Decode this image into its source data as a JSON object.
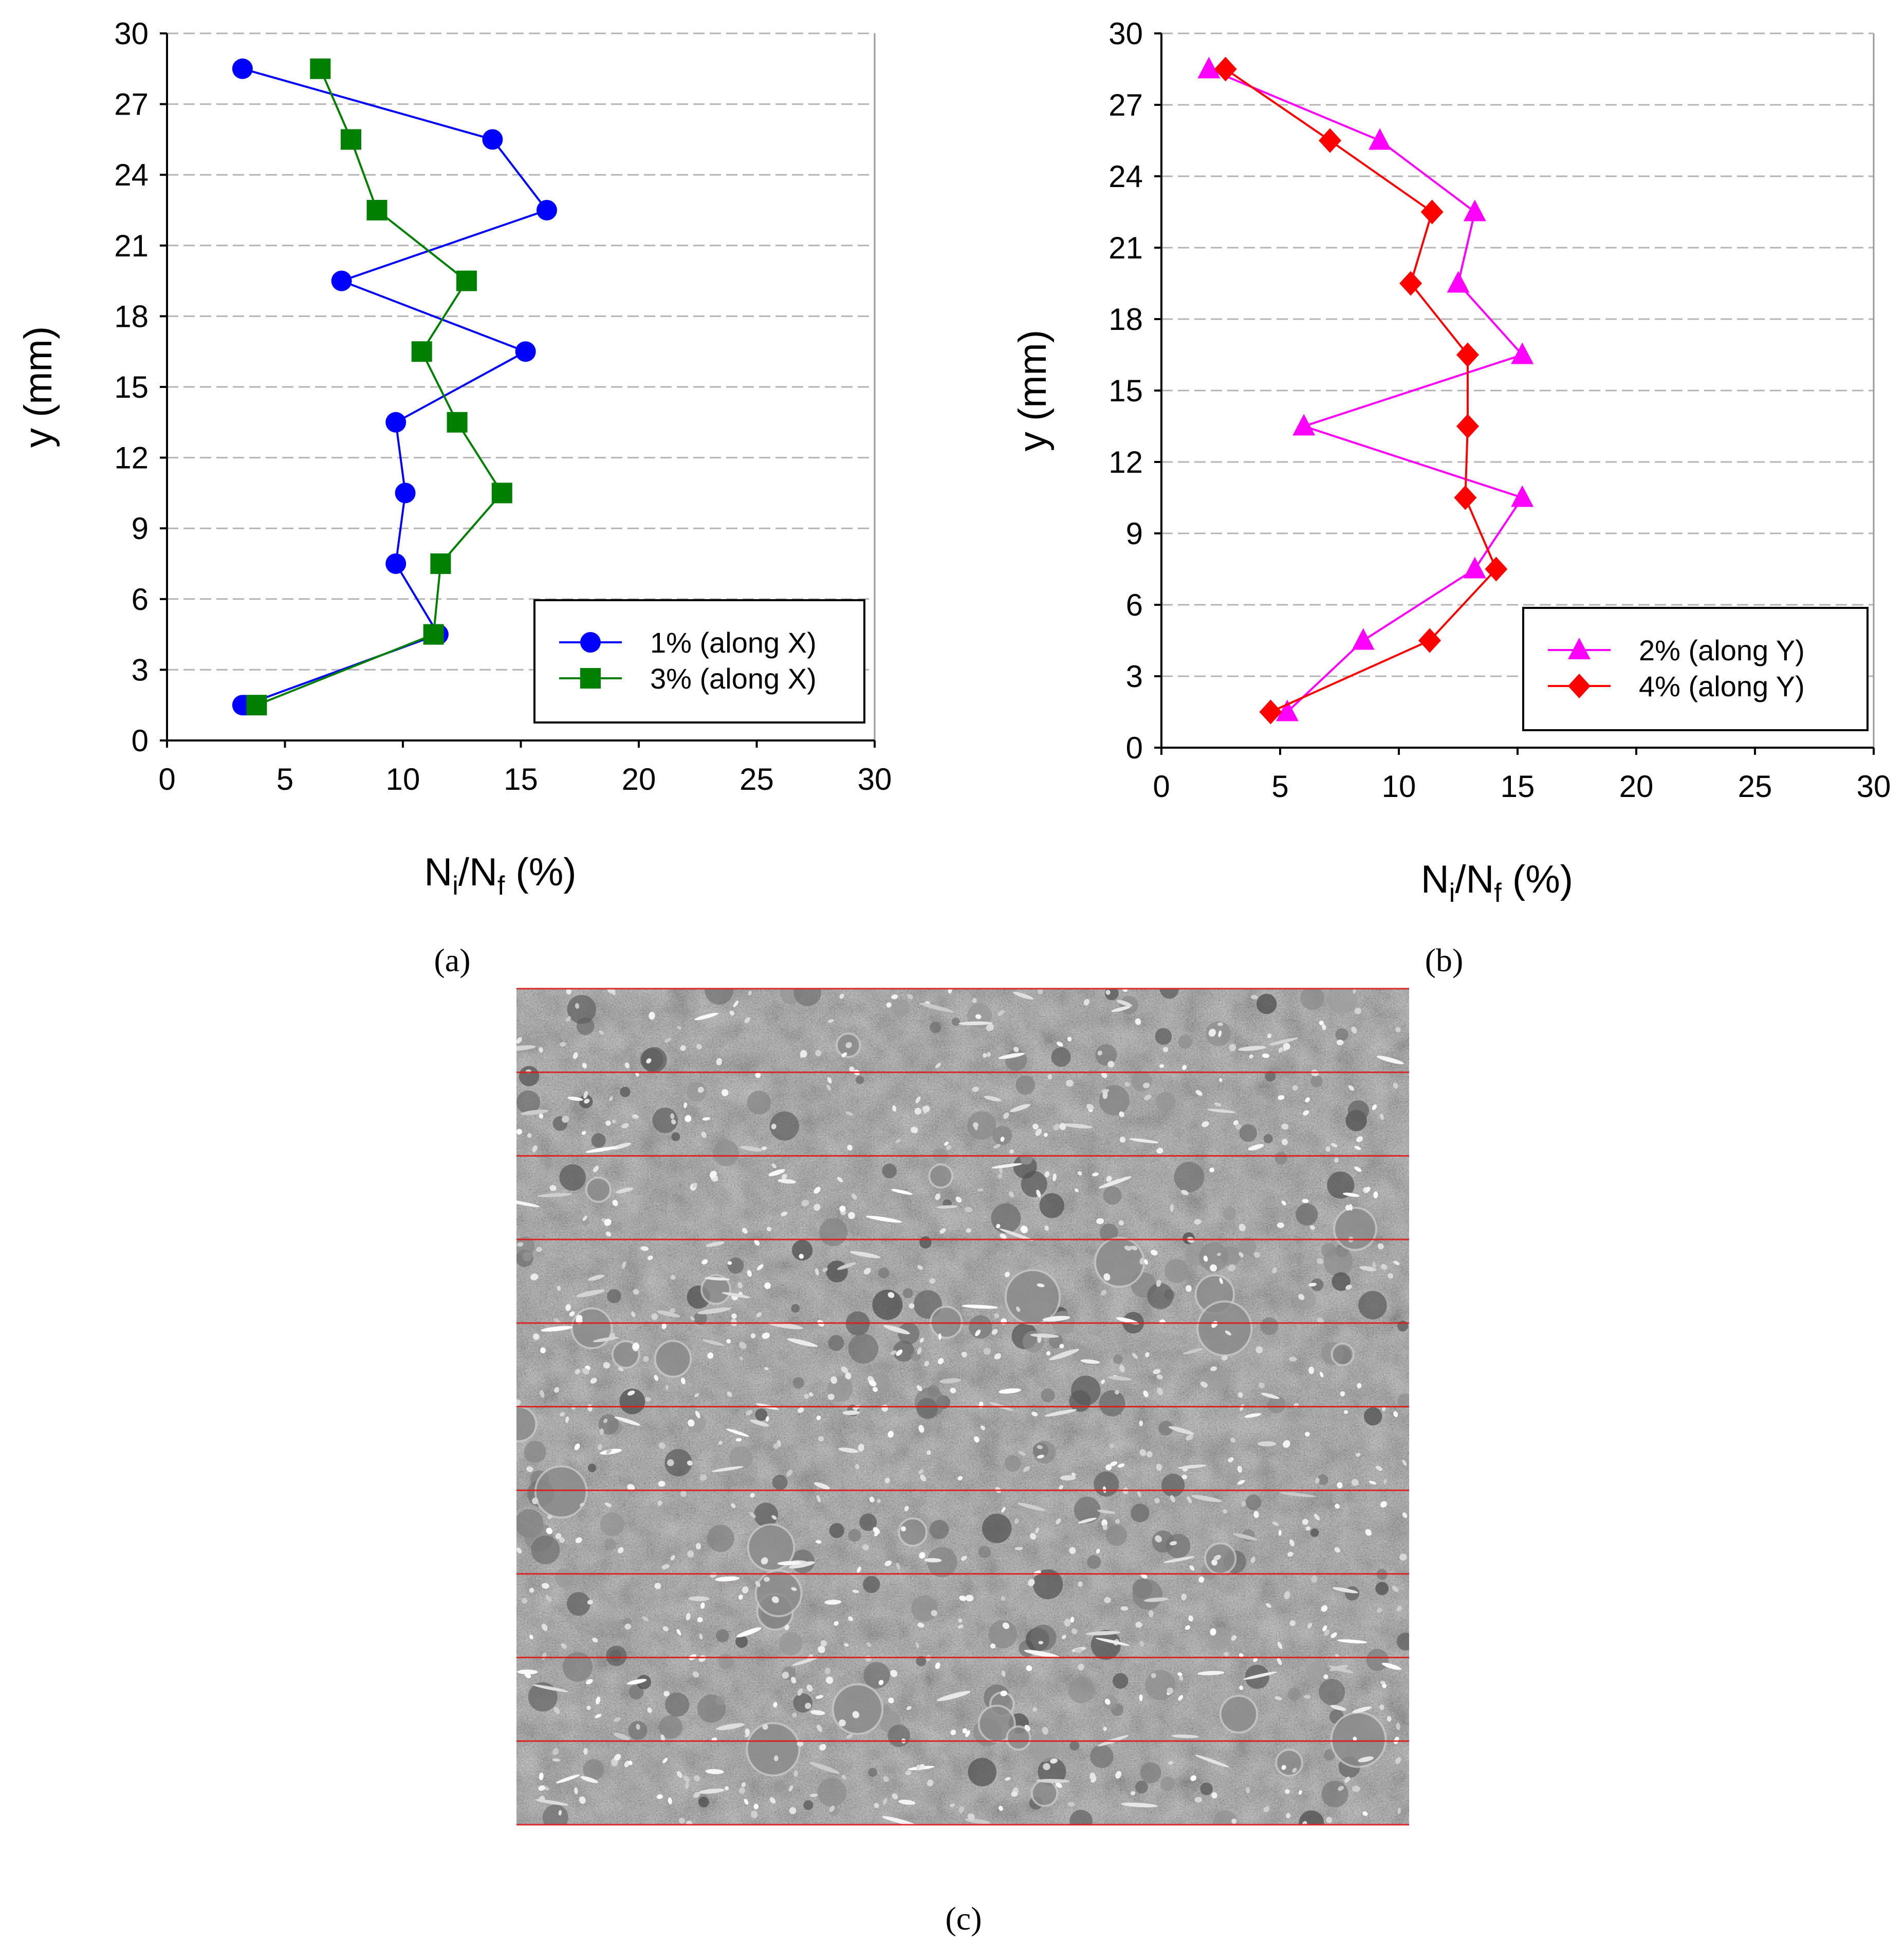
{
  "panel_captions": [
    "(a)",
    "(b)",
    "(c)"
  ],
  "chart_data": [
    {
      "type": "line",
      "panel": "(a)",
      "xlabel_base": "N",
      "xlabel_sub1": "i",
      "xlabel_mid": "/N",
      "xlabel_sub2": "f",
      "xlabel_tail": " (%)",
      "ylabel": "y (mm)",
      "xlim": [
        0,
        30
      ],
      "ylim": [
        0,
        30
      ],
      "xticks": [
        0,
        5,
        10,
        15,
        20,
        25,
        30
      ],
      "yticks": [
        0,
        3,
        6,
        9,
        12,
        15,
        18,
        21,
        24,
        27,
        30
      ],
      "grid": "horizontal dashed",
      "legend_position": "bottom-right",
      "series": [
        {
          "name": "1% (along X)",
          "color": "#0000ff",
          "marker": "circle",
          "x": [
            3.2,
            3.3,
            11.5,
            9.7,
            10.1,
            9.7,
            15.2,
            7.4,
            16.1,
            13.8,
            3.2
          ],
          "y": [
            1.5,
            1.5,
            4.5,
            7.5,
            10.5,
            13.5,
            16.5,
            19.5,
            22.5,
            25.5,
            28.5
          ]
        },
        {
          "name": "3% (along X)",
          "color": "#008000",
          "marker": "square",
          "x": [
            3.8,
            11.3,
            11.6,
            14.2,
            12.3,
            10.8,
            12.7,
            8.9,
            7.8,
            6.5
          ],
          "y": [
            1.5,
            4.5,
            7.5,
            10.5,
            13.5,
            16.5,
            19.5,
            22.5,
            25.5,
            28.5
          ]
        }
      ]
    },
    {
      "type": "line",
      "panel": "(b)",
      "xlabel_base": "N",
      "xlabel_sub1": "i",
      "xlabel_mid": "/N",
      "xlabel_sub2": "f",
      "xlabel_tail": " (%)",
      "ylabel": "y (mm)",
      "xlim": [
        0,
        30
      ],
      "ylim": [
        0,
        30
      ],
      "xticks": [
        0,
        5,
        10,
        15,
        20,
        25,
        30
      ],
      "yticks": [
        0,
        3,
        6,
        9,
        12,
        15,
        18,
        21,
        24,
        27,
        30
      ],
      "grid": "horizontal dashed",
      "legend_position": "bottom-right",
      "series": [
        {
          "name": "2% (along Y)",
          "color": "#ff00ff",
          "marker": "triangle",
          "x": [
            5.3,
            8.5,
            13.2,
            15.2,
            6.0,
            15.2,
            12.5,
            13.2,
            9.2,
            2.0
          ],
          "y": [
            1.5,
            4.5,
            7.5,
            10.5,
            13.5,
            16.5,
            19.5,
            22.5,
            25.5,
            28.5
          ]
        },
        {
          "name": "4% (along Y)",
          "color": "#ff0000",
          "marker": "diamond",
          "x": [
            4.6,
            11.3,
            14.1,
            12.8,
            12.9,
            12.9,
            10.5,
            11.4,
            7.1,
            2.7
          ],
          "y": [
            1.5,
            4.5,
            7.5,
            10.5,
            13.5,
            16.5,
            19.5,
            22.5,
            25.5,
            28.5
          ]
        }
      ]
    }
  ],
  "image_panel": {
    "description_name": "specimen-cross-section",
    "line_color": "#e01818",
    "slice_count": 10
  }
}
